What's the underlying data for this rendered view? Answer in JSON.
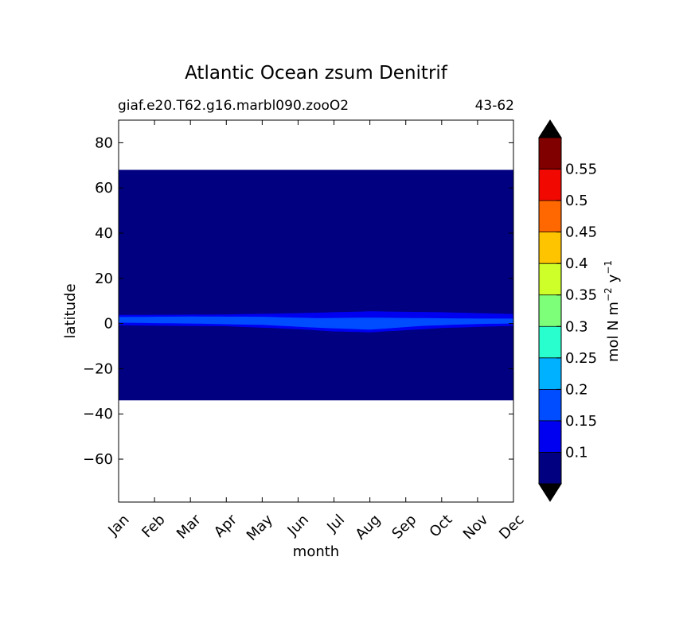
{
  "chart_data": {
    "type": "heatmap",
    "title": "Atlantic Ocean zsum Denitrif",
    "subtitle_left": "giaf.e20.T62.g16.marbl090.zooO2",
    "subtitle_right": "43-62",
    "xlabel": "month",
    "ylabel": "latitude",
    "x_categories": [
      "Jan",
      "Feb",
      "Mar",
      "Apr",
      "May",
      "Jun",
      "Jul",
      "Aug",
      "Sep",
      "Oct",
      "Nov",
      "Dec"
    ],
    "yticks": [
      "80",
      "60",
      "40",
      "20",
      "0",
      "−20",
      "−40",
      "−60"
    ],
    "ytick_values": [
      80,
      60,
      40,
      20,
      0,
      -20,
      -40,
      -60
    ],
    "ylim": [
      -79,
      90
    ],
    "data_extent_lat": [
      -34,
      68
    ],
    "background_level": 0.05,
    "bands": [
      {
        "level": 0.125,
        "upper": [
          [
            0,
            3.8
          ],
          [
            3,
            4.0
          ],
          [
            5,
            4.6
          ],
          [
            6,
            5.0
          ],
          [
            7,
            5.4
          ],
          [
            9,
            5.0
          ],
          [
            11,
            4.2
          ]
        ],
        "lower": [
          [
            0,
            -0.8
          ],
          [
            3,
            -1.2
          ],
          [
            5,
            -2.5
          ],
          [
            6,
            -3.5
          ],
          [
            7,
            -3.9
          ],
          [
            9,
            -2.0
          ],
          [
            11,
            -1.0
          ]
        ]
      },
      {
        "level": 0.175,
        "upper": [
          [
            0,
            2.9
          ],
          [
            2,
            3.1
          ],
          [
            4,
            3.0
          ],
          [
            5.5,
            2.4
          ],
          [
            7,
            2.6
          ],
          [
            8.5,
            2.4
          ],
          [
            10,
            2.2
          ],
          [
            11,
            2.2
          ]
        ],
        "lower": [
          [
            0,
            0.4
          ],
          [
            2,
            0.0
          ],
          [
            4,
            -0.6
          ],
          [
            5.5,
            -1.8
          ],
          [
            7,
            -2.7
          ],
          [
            8.5,
            -1.0
          ],
          [
            10,
            -0.2
          ],
          [
            11,
            0.0
          ]
        ]
      }
    ],
    "colorbar": {
      "label": "mol N m",
      "label_sup1": "−2",
      "label_y": "y",
      "label_sup2": "−1",
      "boundaries": [
        0.05,
        0.1,
        0.15,
        0.2,
        0.25,
        0.3,
        0.35,
        0.4,
        0.45,
        0.5,
        0.55,
        0.6
      ],
      "colors": [
        "#000080",
        "#0000f1",
        "#004dff",
        "#00b1ff",
        "#29ffce",
        "#7dff7a",
        "#ceff29",
        "#ffc400",
        "#ff6800",
        "#f10800",
        "#800000"
      ],
      "under_color": "#000000",
      "over_color": "#000000",
      "tick_labels": [
        "0.1",
        "0.15",
        "0.2",
        "0.25",
        "0.3",
        "0.35",
        "0.4",
        "0.45",
        "0.5",
        "0.55"
      ],
      "tick_values": [
        0.1,
        0.15,
        0.2,
        0.25,
        0.3,
        0.35,
        0.4,
        0.45,
        0.5,
        0.55
      ],
      "extend": "both"
    }
  }
}
